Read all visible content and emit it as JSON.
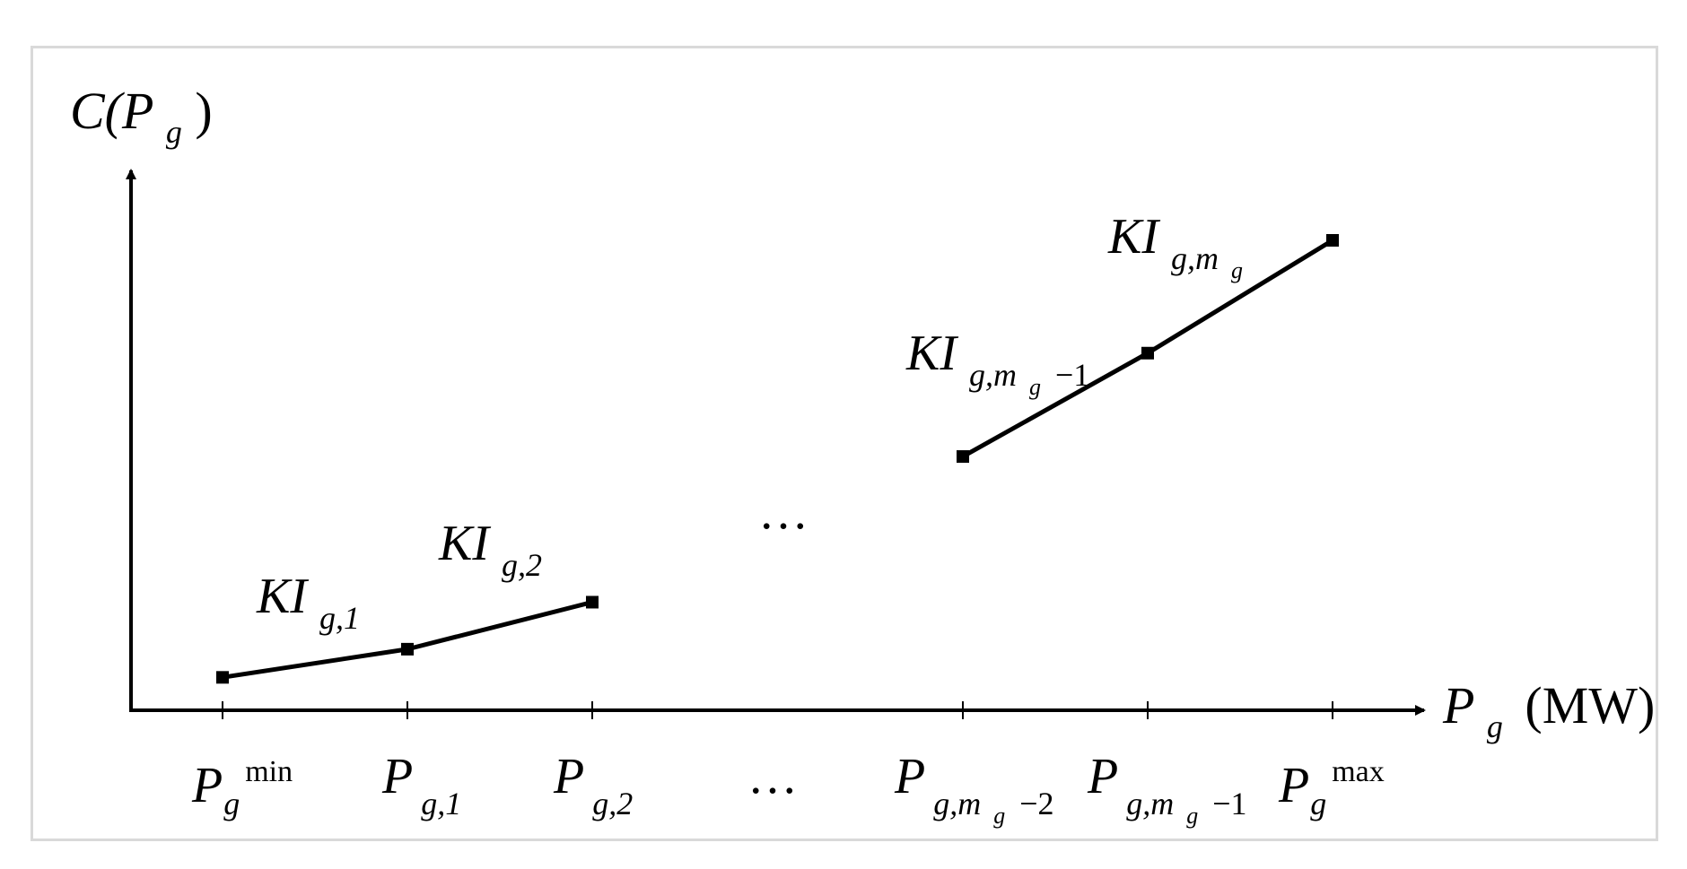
{
  "colors": {
    "ink": "#000000",
    "frame": "#d9d9d9",
    "background": "#ffffff"
  },
  "axes": {
    "y_label": {
      "main": "C(P",
      "sub": "g",
      "close": ")"
    },
    "x_label": {
      "main": "P",
      "sub": "g",
      "unit": "(MW)"
    }
  },
  "x_ticks": [
    {
      "main": "P",
      "sub": "g",
      "sup": "min"
    },
    {
      "main": "P",
      "sub": "g,1"
    },
    {
      "main": "P",
      "sub": "g,2"
    },
    {
      "main": "…"
    },
    {
      "main": "P",
      "sub_prefix": "g,m",
      "sub_sub": "g",
      "sub_suffix": "−2"
    },
    {
      "main": "P",
      "sub_prefix": "g,m",
      "sub_sub": "g",
      "sub_suffix": "−1"
    },
    {
      "main": "P",
      "sub": "g",
      "sup": "max"
    }
  ],
  "segment_labels": [
    {
      "main": "KI",
      "sub": "g,1"
    },
    {
      "main": "KI",
      "sub": "g,2"
    },
    {
      "main": "KI",
      "sub_prefix": "g,m",
      "sub_sub": "g",
      "sub_suffix": "−1"
    },
    {
      "main": "KI",
      "sub_prefix": "g,m",
      "sub_sub": "g"
    }
  ],
  "gap_ellipsis": "…",
  "cost_curve": {
    "left_segments": {
      "x_tick_index": [
        0,
        1,
        2
      ],
      "relative_cost": [
        0.07,
        0.13,
        0.23
      ]
    },
    "right_segments": {
      "x_tick_index": [
        4,
        5,
        6
      ],
      "relative_cost": [
        0.54,
        0.76,
        1.0
      ]
    }
  }
}
